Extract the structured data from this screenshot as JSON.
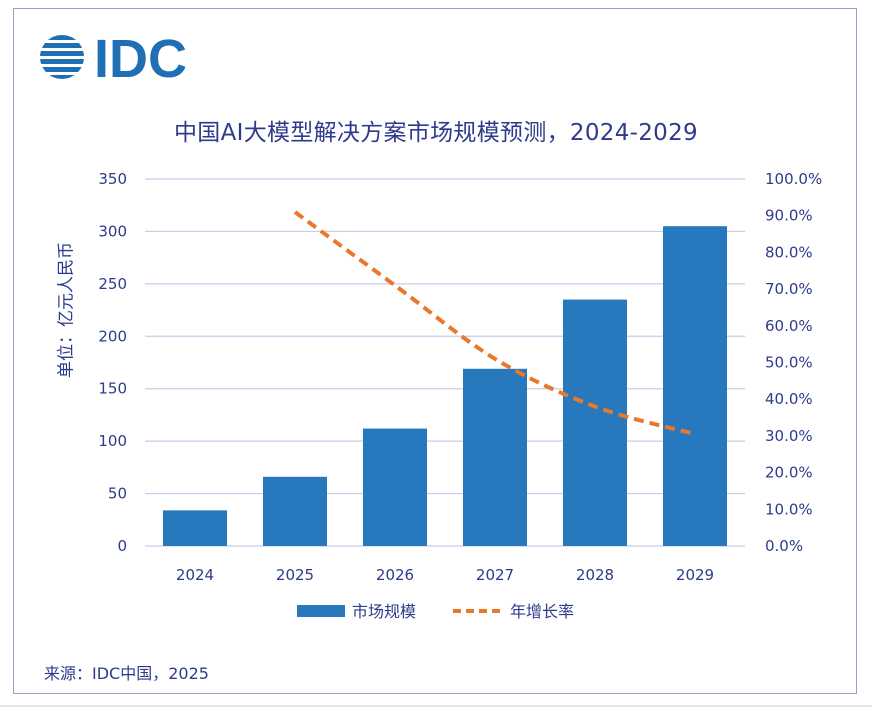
{
  "logo": {
    "text": "IDC",
    "color": "#1f6fb5"
  },
  "title": "中国AI大模型解决方案市场规模预测，2024-2029",
  "source": "来源：IDC中国，2025",
  "colors": {
    "bar": "#2878bd",
    "line": "#e8782c",
    "text": "#2e3b8c",
    "grid": "#c9cbe8"
  },
  "chart_data": {
    "type": "bar",
    "categories": [
      "2024",
      "2025",
      "2026",
      "2027",
      "2028",
      "2029"
    ],
    "series": [
      {
        "name": "市场规模",
        "type": "bar",
        "axis": "left",
        "values": [
          34,
          66,
          112,
          169,
          235,
          305
        ]
      },
      {
        "name": "年增长率",
        "type": "line",
        "style": "dashed",
        "axis": "right",
        "values": [
          null,
          91,
          71,
          51,
          38,
          30.5
        ]
      }
    ],
    "ylabel": "单位：亿元人民币",
    "ylim": [
      0,
      350
    ],
    "y_ticks": [
      "0",
      "50",
      "100",
      "150",
      "200",
      "250",
      "300",
      "350"
    ],
    "y2lim": [
      0,
      100
    ],
    "y2_ticks": [
      "0.0%",
      "10.0%",
      "20.0%",
      "30.0%",
      "40.0%",
      "50.0%",
      "60.0%",
      "70.0%",
      "80.0%",
      "90.0%",
      "100.0%"
    ],
    "grid": true,
    "legend_position": "bottom"
  }
}
